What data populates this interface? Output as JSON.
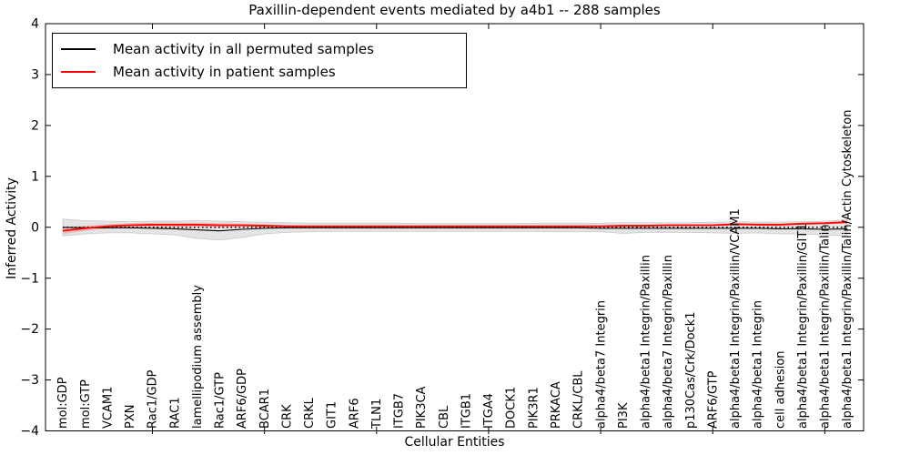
{
  "title": "Paxillin-dependent events mediated by a4b1 -- 288 samples",
  "axes": {
    "x_label": "Cellular Entities",
    "y_label": "Inferred Activity",
    "y_ticks": [
      -4,
      -3,
      -2,
      -1,
      0,
      1,
      2,
      3,
      4
    ],
    "ylim": [
      -4,
      4
    ],
    "x_major_tick_every": 5
  },
  "legend": {
    "entries": [
      {
        "label": "Mean activity in all permuted samples",
        "color": "#000000"
      },
      {
        "label": "Mean activity in patient samples",
        "color": "#ff0000"
      }
    ]
  },
  "colors": {
    "permuted_line": "#000000",
    "patient_line": "#ff0000",
    "permuted_band": "#e4e4e4",
    "band_edge": "#c9c9c9",
    "patient_band": "#ff6a6a",
    "zero_line": "#000000",
    "frame": "#000000"
  },
  "chart_data": {
    "type": "line",
    "title": "Paxillin-dependent events mediated by a4b1 -- 288 samples",
    "xlabel": "Cellular Entities",
    "ylabel": "Inferred Activity",
    "ylim": [
      -4,
      4
    ],
    "grid": false,
    "legend_position": "upper left",
    "categories": [
      "mol:GDP",
      "mol:GTP",
      "VCAM1",
      "PXN",
      "Rac1/GDP",
      "RAC1",
      "lamellipodium assembly",
      "Rac1/GTP",
      "ARF6/GDP",
      "BCAR1",
      "CRK",
      "CRKL",
      "GIT1",
      "ARF6",
      "TLN1",
      "ITGB7",
      "PIK3CA",
      "CBL",
      "ITGB1",
      "ITGA4",
      "DOCK1",
      "PIK3R1",
      "PRKACA",
      "CRKL/CBL",
      "alpha4/beta7 Integrin",
      "PI3K",
      "alpha4/beta1 Integrin/Paxillin",
      "alpha4/beta7 Integrin/Paxillin",
      "p130Cas/Crk/Dock1",
      "ARF6/GTP",
      "alpha4/beta1 Integrin/Paxillin/VCAM1",
      "alpha4/beta1 Integrin",
      "cell adhesion",
      "alpha4/beta1 Integrin/Paxillin/GIT1",
      "alpha4/beta1 Integrin/Paxillin/Talin",
      "alpha4/beta1 Integrin/Paxillin/Talin/Actin Cytoskeleton"
    ],
    "series": [
      {
        "name": "Mean activity in all permuted samples",
        "values": [
          0.0,
          -0.01,
          -0.01,
          -0.01,
          -0.02,
          -0.03,
          -0.05,
          -0.07,
          -0.04,
          -0.02,
          -0.01,
          -0.01,
          -0.01,
          -0.01,
          -0.01,
          -0.01,
          -0.01,
          -0.01,
          -0.01,
          -0.01,
          -0.01,
          -0.01,
          -0.01,
          -0.01,
          -0.02,
          -0.02,
          -0.02,
          -0.02,
          -0.02,
          -0.02,
          -0.02,
          -0.02,
          -0.03,
          -0.03,
          -0.04,
          -0.03
        ]
      },
      {
        "name": "Mean activity in patient samples",
        "values": [
          -0.07,
          -0.02,
          0.02,
          0.04,
          0.05,
          0.05,
          0.05,
          0.04,
          0.04,
          0.03,
          0.02,
          0.02,
          0.02,
          0.02,
          0.02,
          0.02,
          0.02,
          0.02,
          0.02,
          0.02,
          0.02,
          0.02,
          0.02,
          0.02,
          0.02,
          0.03,
          0.03,
          0.04,
          0.04,
          0.04,
          0.06,
          0.05,
          0.05,
          0.07,
          0.08,
          0.1
        ]
      }
    ],
    "bands": {
      "permuted_upper": [
        0.16,
        0.13,
        0.12,
        0.11,
        0.12,
        0.12,
        0.13,
        0.12,
        0.11,
        0.1,
        0.09,
        0.08,
        0.08,
        0.08,
        0.08,
        0.08,
        0.07,
        0.07,
        0.07,
        0.07,
        0.07,
        0.08,
        0.08,
        0.08,
        0.08,
        0.09,
        0.09,
        0.09,
        0.09,
        0.1,
        0.11,
        0.1,
        0.1,
        0.11,
        0.12,
        0.15
      ],
      "permuted_lower": [
        -0.17,
        -0.13,
        -0.11,
        -0.11,
        -0.13,
        -0.15,
        -0.22,
        -0.25,
        -0.2,
        -0.13,
        -0.1,
        -0.09,
        -0.08,
        -0.08,
        -0.08,
        -0.08,
        -0.08,
        -0.08,
        -0.08,
        -0.08,
        -0.08,
        -0.08,
        -0.09,
        -0.09,
        -0.09,
        -0.12,
        -0.1,
        -0.1,
        -0.1,
        -0.11,
        -0.12,
        -0.11,
        -0.13,
        -0.13,
        -0.15,
        -0.17
      ],
      "patient_upper": [
        -0.01,
        0.03,
        0.06,
        0.08,
        0.09,
        0.09,
        0.09,
        0.08,
        0.07,
        0.06,
        0.04,
        0.03,
        0.03,
        0.03,
        0.03,
        0.03,
        0.03,
        0.03,
        0.03,
        0.03,
        0.03,
        0.03,
        0.03,
        0.03,
        0.04,
        0.05,
        0.05,
        0.06,
        0.06,
        0.06,
        0.09,
        0.08,
        0.07,
        0.09,
        0.1,
        0.13
      ],
      "patient_lower": [
        -0.13,
        -0.07,
        -0.02,
        0.0,
        0.01,
        0.01,
        0.01,
        0.0,
        0.01,
        0.0,
        0.0,
        0.01,
        0.01,
        0.01,
        0.01,
        0.01,
        0.01,
        0.01,
        0.01,
        0.01,
        0.01,
        0.01,
        0.01,
        0.01,
        0.0,
        0.01,
        0.01,
        0.02,
        0.02,
        0.02,
        0.03,
        0.04,
        0.03,
        0.05,
        0.06,
        0.07
      ]
    },
    "zero_reference_line": 0
  }
}
